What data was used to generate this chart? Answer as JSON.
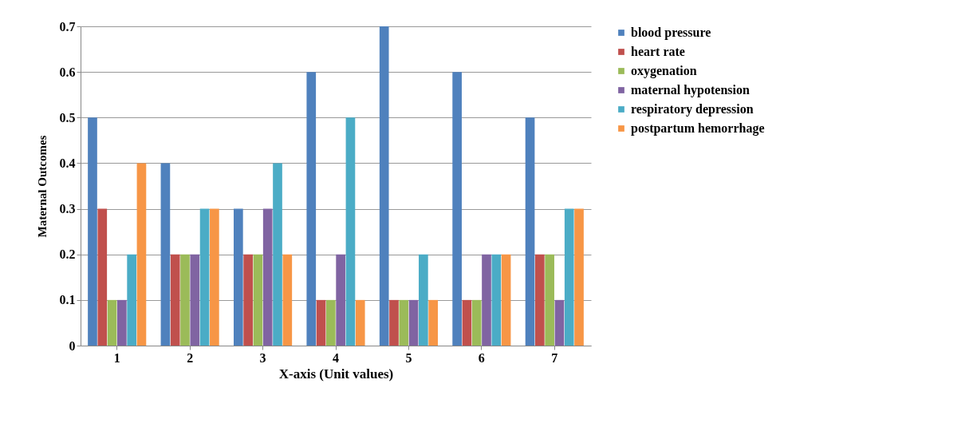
{
  "chart_data": {
    "type": "bar",
    "xlabel": "X-axis (Unit values)",
    "ylabel": "Maternal Outcomes",
    "categories": [
      "1",
      "2",
      "3",
      "4",
      "5",
      "6",
      "7"
    ],
    "series": [
      {
        "name": "blood pressure",
        "color": "#4f81bd",
        "values": [
          0.5,
          0.4,
          0.3,
          0.6,
          0.7,
          0.6,
          0.5
        ]
      },
      {
        "name": "heart rate",
        "color": "#c0504d",
        "values": [
          0.3,
          0.2,
          0.2,
          0.1,
          0.1,
          0.1,
          0.2
        ]
      },
      {
        "name": "oxygenation",
        "color": "#9bbb59",
        "values": [
          0.1,
          0.2,
          0.2,
          0.1,
          0.1,
          0.1,
          0.2
        ]
      },
      {
        "name": "maternal hypotension",
        "color": "#8064a2",
        "values": [
          0.1,
          0.2,
          0.3,
          0.2,
          0.1,
          0.2,
          0.1
        ]
      },
      {
        "name": "respiratory depression",
        "color": "#4bacc6",
        "values": [
          0.2,
          0.3,
          0.4,
          0.5,
          0.2,
          0.2,
          0.3
        ]
      },
      {
        "name": "postpartum hemorrhage",
        "color": "#f79646",
        "values": [
          0.4,
          0.3,
          0.2,
          0.1,
          0.1,
          0.2,
          0.3
        ]
      }
    ],
    "ylim": [
      0,
      0.7
    ],
    "yticks": [
      0,
      0.1,
      0.2,
      0.3,
      0.4,
      0.5,
      0.6,
      0.7
    ],
    "grid": "y",
    "legend": "right"
  }
}
